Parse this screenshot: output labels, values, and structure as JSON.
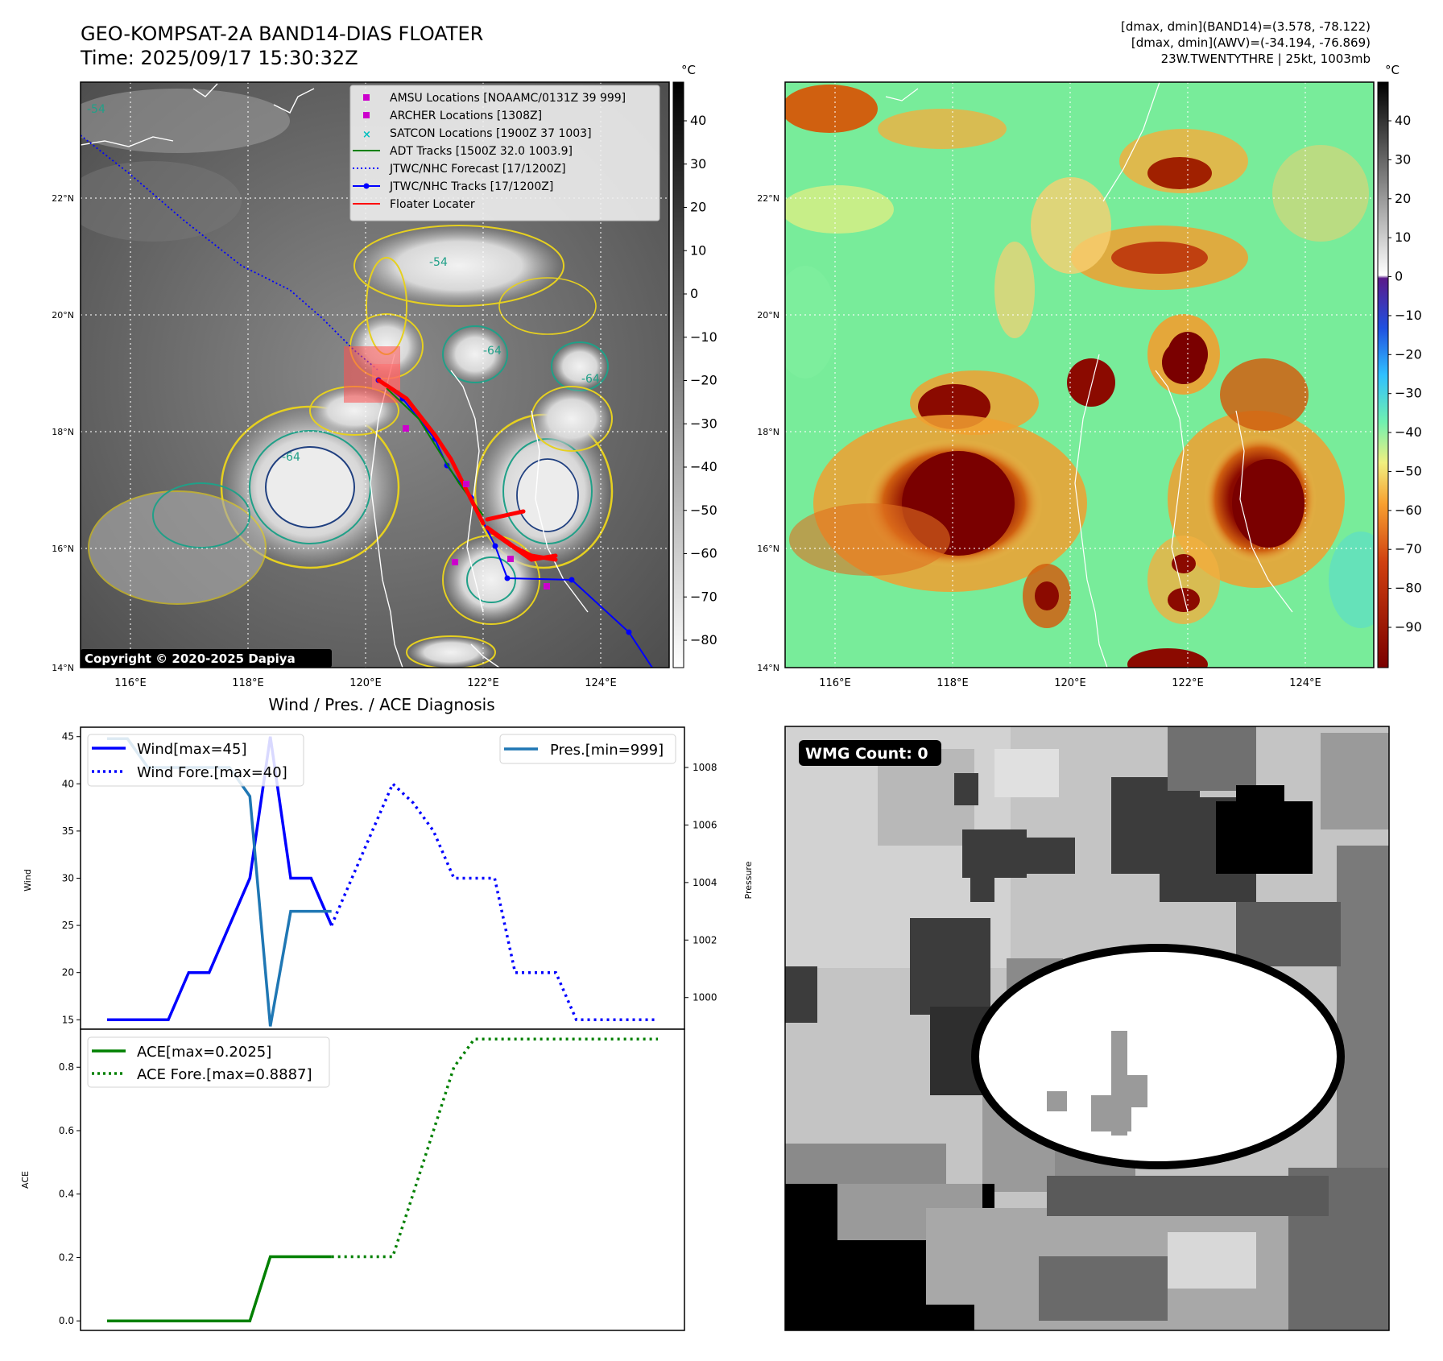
{
  "header": {
    "title": "GEO-KOMPSAT-2A BAND14-DIAS FLOATER",
    "time": "Time: 2025/09/17 15:30:32Z",
    "info_lines": [
      "[dmax, dmin](BAND14)=(3.578, -78.122)",
      "[dmax, dmin](AWV)=(-34.194, -76.869)",
      "23W.TWENTYTHRE | 25kt, 1003mb"
    ]
  },
  "colors": {
    "wind": "#0000ff",
    "pressure": "#1f77b4",
    "ace": "#008000",
    "floater": "#ff0000",
    "amsu": "#cc00cc",
    "satcon": "#00bfbf"
  },
  "map_ir": {
    "unit": "°C",
    "colorbar_ticks": [
      "40",
      "30",
      "20",
      "10",
      "0",
      "−10",
      "−20",
      "−30",
      "−40",
      "−50",
      "−60",
      "−70",
      "−80"
    ],
    "lat_labels": [
      "22°N",
      "20°N",
      "18°N",
      "16°N",
      "14°N"
    ],
    "lon_labels": [
      "116°E",
      "118°E",
      "120°E",
      "122°E",
      "124°E"
    ],
    "contour_labels": [
      "-54",
      "-54",
      "-64",
      "-64",
      "-64"
    ],
    "copyright": "Copyright © 2020-2025 Dapiya",
    "legend": [
      {
        "marker": "square",
        "color": "#cc00cc",
        "label": "AMSU Locations [NOAAMC/0131Z 39 999]"
      },
      {
        "marker": "square",
        "color": "#cc00cc",
        "label": "ARCHER Locations [1308Z]"
      },
      {
        "marker": "x",
        "color": "#00bfbf",
        "label": "SATCON Locations [1900Z 37 1003]"
      },
      {
        "marker": "line",
        "color": "#008000",
        "label": "ADT Tracks [1500Z 32.0 1003.9]"
      },
      {
        "marker": "dotted",
        "color": "#0000ff",
        "label": "JTWC/NHC Forecast [17/1200Z]"
      },
      {
        "marker": "line-dot",
        "color": "#0000ff",
        "label": "JTWC/NHC Tracks [17/1200Z]"
      },
      {
        "marker": "line",
        "color": "#ff0000",
        "label": "Floater Locater"
      }
    ]
  },
  "map_awv": {
    "unit": "°C",
    "colorbar_ticks": [
      "40",
      "30",
      "20",
      "10",
      "0",
      "−10",
      "−20",
      "−30",
      "−40",
      "−50",
      "−60",
      "−70",
      "−80",
      "−90"
    ],
    "lat_labels": [
      "22°N",
      "20°N",
      "18°N",
      "16°N",
      "14°N"
    ],
    "lon_labels": [
      "116°E",
      "118°E",
      "120°E",
      "122°E",
      "124°E"
    ]
  },
  "wmg": {
    "label": "WMG Count: 0"
  },
  "chart_data": [
    {
      "type": "line",
      "title": "Wind / Pres. / ACE Diagnosis",
      "ylabel": "Wind",
      "y2label": "Pressure",
      "ylim": [
        14,
        46
      ],
      "y2lim": [
        998.9,
        1009.4
      ],
      "yticks": [
        15,
        20,
        25,
        30,
        35,
        40,
        45
      ],
      "y2ticks": [
        1000,
        1002,
        1004,
        1006,
        1008
      ],
      "series": [
        {
          "name": "Wind[max=45]",
          "style": "solid",
          "axis": "left",
          "x": [
            0,
            1,
            2,
            3,
            4,
            5,
            6,
            7,
            8,
            9,
            10,
            11
          ],
          "values": [
            15,
            15,
            15,
            15,
            20,
            20,
            25,
            30,
            45,
            30,
            30,
            25
          ]
        },
        {
          "name": "Wind Fore.[max=40]",
          "style": "dotted",
          "axis": "left",
          "x": [
            11,
            12,
            13,
            14,
            15,
            16,
            17,
            18,
            19,
            20,
            21,
            22,
            23,
            24,
            25,
            26,
            27
          ],
          "values": [
            25,
            30,
            35,
            40,
            38,
            35,
            30,
            30,
            30,
            20,
            20,
            20,
            15,
            15,
            15,
            15,
            15
          ]
        },
        {
          "name": "Pres.[min=999]",
          "style": "solid",
          "axis": "right",
          "x": [
            0,
            1,
            2,
            3,
            4,
            5,
            6,
            7,
            8,
            9,
            10,
            11
          ],
          "values": [
            1009,
            1009,
            1008,
            1008,
            1008,
            1008,
            1008,
            1007,
            999,
            1003,
            1003,
            1003
          ]
        }
      ]
    },
    {
      "type": "line",
      "ylabel": "ACE",
      "ylim": [
        -0.03,
        0.92
      ],
      "yticks": [
        0.0,
        0.2,
        0.4,
        0.6,
        0.8
      ],
      "series": [
        {
          "name": "ACE[max=0.2025]",
          "style": "solid",
          "x": [
            0,
            1,
            2,
            3,
            4,
            5,
            6,
            7,
            8,
            9,
            10,
            11
          ],
          "values": [
            0,
            0,
            0,
            0,
            0,
            0,
            0,
            0,
            0.2025,
            0.2025,
            0.2025,
            0.2025
          ]
        },
        {
          "name": "ACE Fore.[max=0.8887]",
          "style": "dotted",
          "x": [
            11,
            12,
            13,
            14,
            15,
            16,
            17,
            18,
            19,
            20,
            21,
            22,
            23,
            24,
            25,
            26,
            27
          ],
          "values": [
            0.2025,
            0.2025,
            0.2025,
            0.2025,
            0.4,
            0.6,
            0.8,
            0.8887,
            0.8887,
            0.8887,
            0.8887,
            0.8887,
            0.8887,
            0.8887,
            0.8887,
            0.8887,
            0.8887
          ]
        }
      ]
    }
  ]
}
